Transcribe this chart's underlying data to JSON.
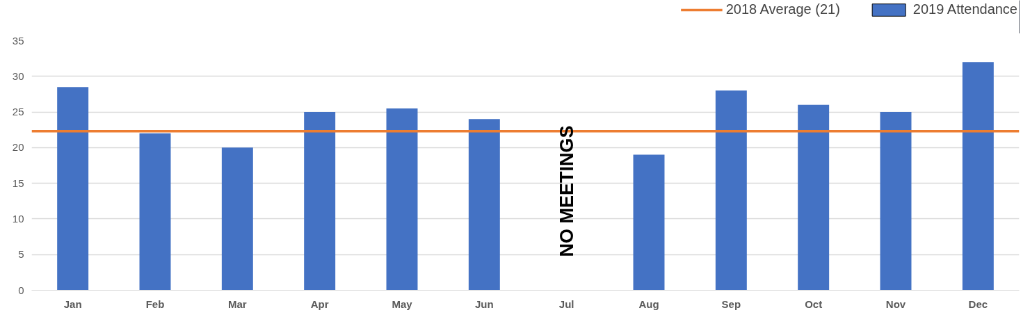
{
  "chart_data": {
    "type": "bar",
    "categories": [
      "Jan",
      "Feb",
      "Mar",
      "Apr",
      "May",
      "Jun",
      "Jul",
      "Aug",
      "Sep",
      "Oct",
      "Nov",
      "Dec"
    ],
    "series": [
      {
        "name": "2019 Attendance",
        "color": "#4472c4",
        "values": [
          28.5,
          22,
          20,
          25,
          25.5,
          24,
          null,
          19,
          28,
          26,
          25,
          32
        ]
      }
    ],
    "ylim": [
      0,
      35
    ],
    "yticks": [
      0,
      5,
      10,
      15,
      20,
      25,
      30,
      35
    ],
    "grid": "y",
    "legend": "top right",
    "ref_lines": [
      {
        "axis": "y",
        "value": 22.3,
        "label": "2018 Average (21)",
        "color": "#ed7d31",
        "line_style": "solid"
      }
    ],
    "annotations": [
      "NO MEETINGS"
    ]
  }
}
